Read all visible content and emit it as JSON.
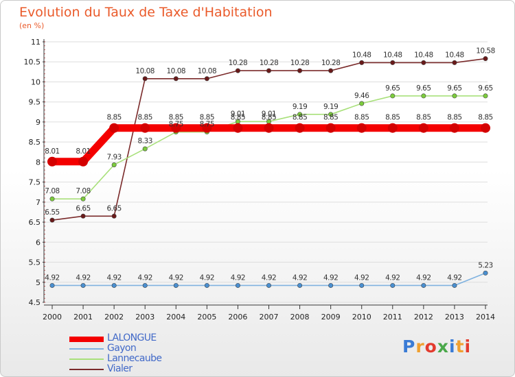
{
  "title": "Evolution du Taux de Taxe d'Habitation",
  "subtitle": "(en %)",
  "logo": {
    "text": "Proxiti",
    "colors": [
      "#3a7bd5",
      "#f0a030",
      "#e33b2e",
      "#4aa84a",
      "#3a7bd5",
      "#f0a030",
      "#e33b2e"
    ]
  },
  "chart_data": {
    "type": "line",
    "x": [
      "2000",
      "2001",
      "2002",
      "2003",
      "2004",
      "2005",
      "2006",
      "2007",
      "2008",
      "2009",
      "2010",
      "2011",
      "2012",
      "2013",
      "2014"
    ],
    "ylim": [
      4.5,
      11
    ],
    "yticks": [
      "4.5",
      "5",
      "5.5",
      "6",
      "6.5",
      "7",
      "7.5",
      "8",
      "8.5",
      "9",
      "9.5",
      "10",
      "10.5",
      "11"
    ],
    "xlabel": "",
    "ylabel": "",
    "legend_position": "bottom-left",
    "series": [
      {
        "name": "LALONGUE",
        "color": "#f40000",
        "marker_color": "#d40000",
        "values": [
          8.01,
          8.01,
          8.85,
          8.85,
          8.85,
          8.85,
          8.85,
          8.85,
          8.85,
          8.85,
          8.85,
          8.85,
          8.85,
          8.85,
          8.85
        ],
        "labels": [
          "8.01",
          "8.01",
          "8.85",
          "8.85",
          "8.85",
          "8.85",
          "8.85",
          "8.85",
          "8.85",
          "8.85",
          "8.85",
          "8.85",
          "8.85",
          "8.85",
          "8.85"
        ]
      },
      {
        "name": "Gayon",
        "color": "#7fb2e0",
        "marker_color": "#4a8fd0",
        "values": [
          4.92,
          4.92,
          4.92,
          4.92,
          4.92,
          4.92,
          4.92,
          4.92,
          4.92,
          4.92,
          4.92,
          4.92,
          4.92,
          4.92,
          5.23
        ],
        "labels": [
          "4.92",
          "4.92",
          "4.92",
          "4.92",
          "4.92",
          "4.92",
          "4.92",
          "4.92",
          "4.92",
          "4.92",
          "4.92",
          "4.92",
          "4.92",
          "4.92",
          "5.23"
        ]
      },
      {
        "name": "Lannecaube",
        "color": "#a8e07a",
        "marker_color": "#7ccc3c",
        "values": [
          7.08,
          7.08,
          7.93,
          8.33,
          8.75,
          8.75,
          9.01,
          9.01,
          9.19,
          9.19,
          9.46,
          9.65,
          9.65,
          9.65,
          9.65
        ],
        "labels": [
          "7.08",
          "7.08",
          "7.93",
          "8.33",
          "8.75",
          "8.75",
          "9.01",
          "9.01",
          "9.19",
          "9.19",
          "9.46",
          "9.65",
          "9.65",
          "9.65",
          "9.65"
        ]
      },
      {
        "name": "Vialer",
        "color": "#7a2a2a",
        "marker_color": "#6a1a1a",
        "values": [
          6.55,
          6.65,
          6.65,
          10.08,
          10.08,
          10.08,
          10.28,
          10.28,
          10.28,
          10.28,
          10.48,
          10.48,
          10.48,
          10.48,
          10.58
        ],
        "labels": [
          "6.55",
          "6.65",
          "6.65",
          "10.08",
          "10.08",
          "10.08",
          "10.28",
          "10.28",
          "10.28",
          "10.28",
          "10.48",
          "10.48",
          "10.48",
          "10.48",
          "10.58"
        ]
      }
    ]
  }
}
